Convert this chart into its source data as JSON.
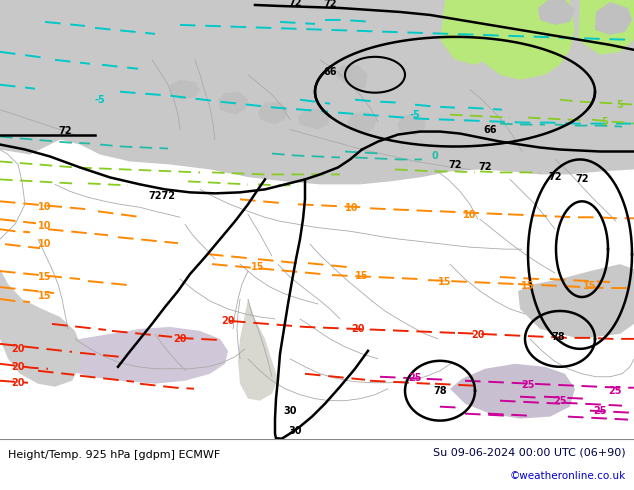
{
  "title_left": "Height/Temp. 925 hPa [gdpm] ECMWF",
  "title_right": "Su 09-06-2024 00:00 UTC (06+90)",
  "credit": "©weatheronline.co.uk",
  "map_bg": "#b8e87a",
  "grey_land": "#c8c8c8",
  "grey_land2": "#d0d0d0",
  "grey_water": "#b8b8c8",
  "light_purple": "#ddd0e0",
  "white_land": "#e8e8e8",
  "footer_bg": "#ffffff",
  "black": "#000000",
  "cyan": "#00c8c8",
  "green_dash": "#88cc22",
  "orange": "#ff8800",
  "red": "#ee2200",
  "magenta": "#cc0099",
  "credit_color": "#0000cc",
  "border_color": "#aaaaaa"
}
